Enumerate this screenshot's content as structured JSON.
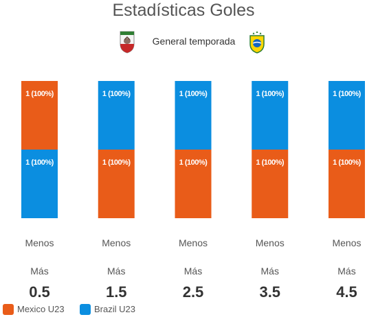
{
  "chart_data": {
    "type": "bar",
    "stacked": true,
    "percent_stacked": true,
    "title": "Estadísticas Goles",
    "subtitle": "General temporada",
    "categories": [
      "0.5",
      "1.5",
      "2.5",
      "3.5",
      "4.5"
    ],
    "category_top_label": "Más",
    "category_bottom_label": "Menos",
    "series": [
      {
        "name": "Mexico U23",
        "color": "#e95c19",
        "bar_position": [
          "top",
          "bottom",
          "bottom",
          "bottom",
          "bottom"
        ],
        "values": [
          1,
          1,
          1,
          1,
          1
        ],
        "labels": [
          "1 (100%)",
          "1 (100%)",
          "1 (100%)",
          "1 (100%)",
          "1 (100%)"
        ]
      },
      {
        "name": "Brazil U23",
        "color": "#0b8ee0",
        "bar_position": [
          "bottom",
          "top",
          "top",
          "top",
          "top"
        ],
        "values": [
          1,
          1,
          1,
          1,
          1
        ],
        "labels": [
          "1 (100%)",
          "1 (100%)",
          "1 (100%)",
          "1 (100%)",
          "1 (100%)"
        ]
      }
    ],
    "legend_position": "bottom-left",
    "grid": false
  },
  "icons": {
    "left_crest": "mexico-crest-icon",
    "right_crest": "brazil-crest-icon"
  }
}
